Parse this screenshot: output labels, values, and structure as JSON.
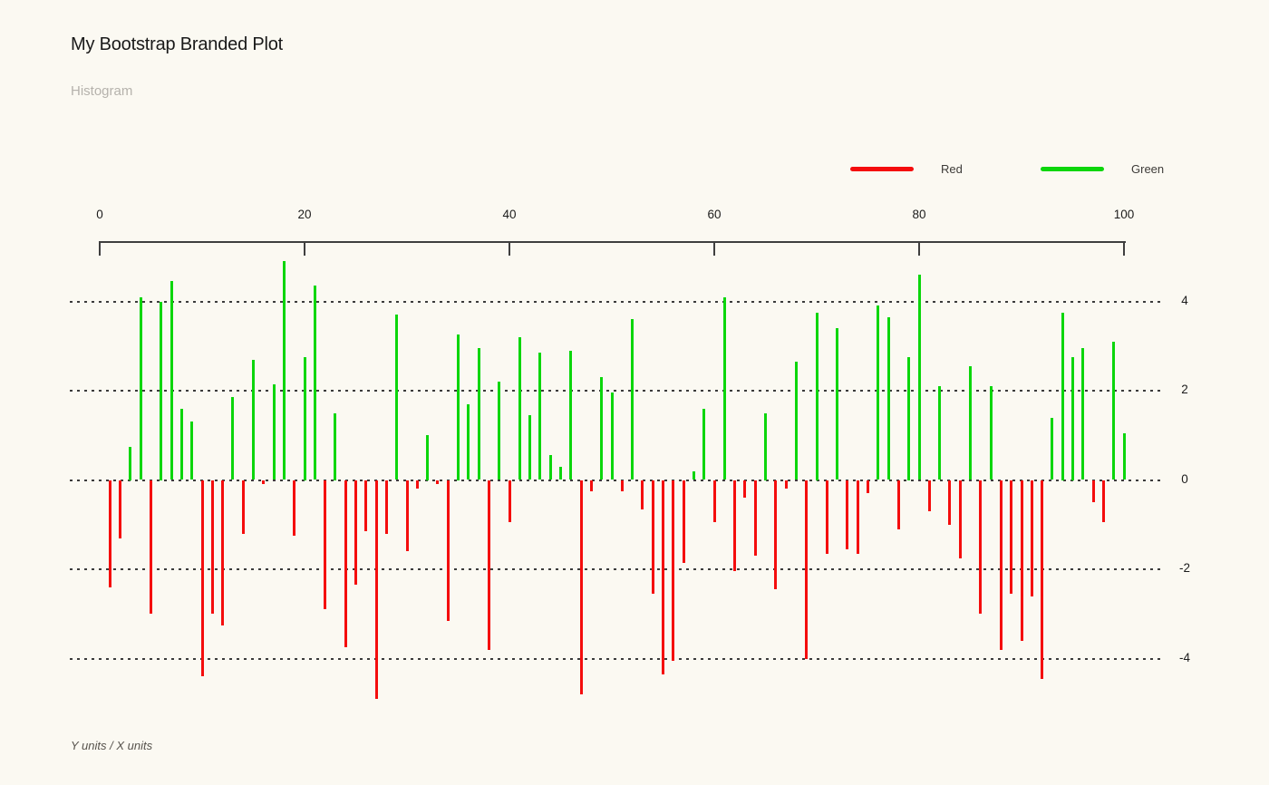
{
  "chart_data": {
    "type": "bar",
    "variant": "stem-histogram, thin vertical bars from zero baseline",
    "title": "My Bootstrap Branded Plot",
    "subtitle": "Histogram",
    "caption": "Y units / X units",
    "legend": [
      {
        "label": "Red",
        "color": "#f40d0d"
      },
      {
        "label": "Green",
        "color": "#0bd60b"
      }
    ],
    "legend_position": "top-right",
    "series_rule": "positive values drawn green, negative values drawn red",
    "x_axis": {
      "position": "top",
      "ticks": [
        0,
        20,
        40,
        60,
        80,
        100
      ],
      "range": [
        0,
        100
      ]
    },
    "y_axis": {
      "position": "right",
      "ticks": [
        4,
        2,
        0,
        -2,
        -4
      ],
      "range": [
        -5,
        5
      ],
      "grid": "dotted"
    },
    "x": [
      1,
      2,
      3,
      4,
      5,
      6,
      7,
      8,
      9,
      10,
      11,
      12,
      13,
      14,
      15,
      16,
      17,
      18,
      19,
      20,
      21,
      22,
      23,
      24,
      25,
      26,
      27,
      28,
      29,
      30,
      31,
      32,
      33,
      34,
      35,
      36,
      37,
      38,
      39,
      40,
      41,
      42,
      43,
      44,
      45,
      46,
      47,
      48,
      49,
      50,
      51,
      52,
      53,
      54,
      55,
      56,
      57,
      58,
      59,
      60,
      61,
      62,
      63,
      64,
      65,
      66,
      67,
      68,
      69,
      70,
      71,
      72,
      73,
      74,
      75,
      76,
      77,
      78,
      79,
      80,
      81,
      82,
      83,
      84,
      85,
      86,
      87,
      88,
      89,
      90,
      91,
      92,
      93,
      94,
      95,
      96,
      97,
      98,
      99,
      100
    ],
    "values": [
      -2.4,
      -1.3,
      0.75,
      4.1,
      -3.0,
      4.0,
      4.45,
      1.6,
      1.3,
      -4.4,
      -3.0,
      -3.25,
      1.85,
      -1.2,
      2.7,
      -0.1,
      2.15,
      4.9,
      -1.25,
      2.75,
      4.35,
      -2.9,
      1.5,
      -3.75,
      -2.35,
      -1.15,
      -4.9,
      -1.2,
      3.7,
      -1.6,
      -0.2,
      1.0,
      -0.1,
      -3.15,
      3.25,
      1.7,
      2.95,
      -3.8,
      2.2,
      -0.95,
      3.2,
      1.45,
      2.85,
      0.55,
      0.3,
      2.9,
      -4.8,
      -0.25,
      2.3,
      1.95,
      -0.25,
      3.6,
      -0.65,
      -2.55,
      -4.35,
      -4.05,
      -1.85,
      0.2,
      1.6,
      -0.95,
      4.1,
      -2.05,
      -0.4,
      -1.7,
      1.5,
      -2.45,
      -0.2,
      2.65,
      -4.0,
      3.75,
      -1.65,
      3.4,
      -1.55,
      -1.65,
      -0.3,
      3.9,
      3.65,
      -1.1,
      2.75,
      4.6,
      -0.7,
      2.1,
      -1.0,
      -1.75,
      2.55,
      -3.0,
      2.1,
      -3.8,
      -2.55,
      -3.6,
      -2.6,
      -4.45,
      1.4,
      3.75,
      2.75,
      2.95,
      -0.5,
      -0.95,
      3.1,
      1.05
    ]
  },
  "colors": {
    "background": "#fbf9f2",
    "red": "#f40d0d",
    "green": "#0bd60b",
    "axis": "#3f3f3f",
    "grid": "#3b3b3b",
    "title_text": "#191919",
    "subtitle_text": "#b5b2ac",
    "caption_text": "#56524c",
    "legend_text": "#3d3b38",
    "tick_label_text": "#1c1c1c"
  }
}
